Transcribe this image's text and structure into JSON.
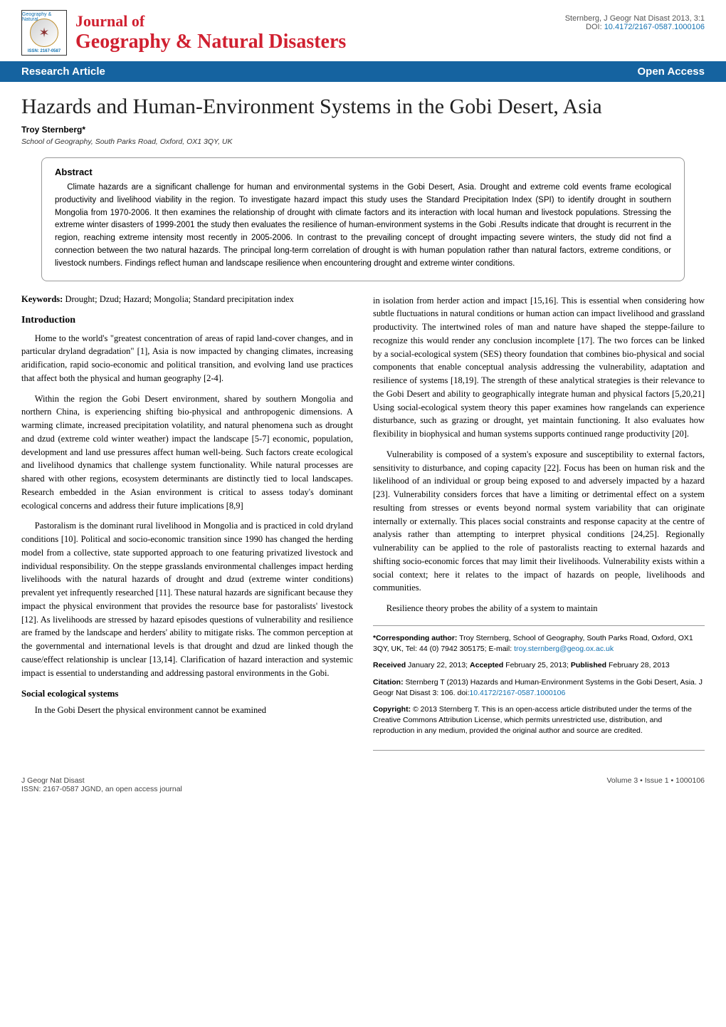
{
  "header": {
    "logo_arc": "Geography & Natural",
    "logo_issn": "ISSN: 2167-0587",
    "journal_of": "Journal of",
    "journal_name": "Geography & Natural Disasters",
    "citation_short": "Sternberg, J Geogr Nat Disast 2013, 3:1",
    "doi_label": "DOI: ",
    "doi": "10.4172/2167-0587.1000106"
  },
  "bar": {
    "left": "Research Article",
    "right": "Open Access"
  },
  "article": {
    "title": "Hazards and Human-Environment Systems in the Gobi Desert, Asia",
    "author": "Troy Sternberg*",
    "affiliation": "School of Geography, South Parks Road, Oxford, OX1 3QY, UK"
  },
  "abstract": {
    "heading": "Abstract",
    "text": "Climate hazards are a significant challenge for human and environmental systems in the Gobi Desert, Asia. Drought and extreme cold events frame ecological productivity and livelihood viability in the region. To investigate hazard impact this study uses the Standard Precipitation Index (SPI) to identify drought in southern Mongolia from 1970-2006. It then examines the relationship of drought with climate factors and its interaction with local human and livestock populations. Stressing the extreme winter disasters of 1999-2001 the study then evaluates the resilience of human-environment systems in the Gobi .Results indicate that drought is recurrent in the region, reaching extreme intensity most recently in 2005-2006. In contrast to the prevailing concept of drought impacting severe winters, the study did not find a connection between the two natural hazards. The principal long-term correlation of drought is with human population rather than natural factors, extreme conditions, or livestock numbers. Findings reflect human and landscape resilience when encountering drought and extreme winter conditions."
  },
  "keywords": {
    "label": "Keywords:",
    "text": " Drought; Dzud; Hazard; Mongolia; Standard precipitation index"
  },
  "sections": {
    "intro_heading": "Introduction",
    "ses_heading": "Social ecological systems"
  },
  "left_col": {
    "p1": "Home to the world's \"greatest concentration of areas of rapid land-cover changes, and in particular dryland degradation\" [1], Asia is now impacted by changing climates, increasing aridification, rapid socio-economic and political transition, and evolving land use practices that affect both the physical and human geography [2-4].",
    "p2": "Within the region the Gobi Desert environment, shared by southern Mongolia and northern China, is experiencing shifting bio-physical and anthropogenic dimensions. A warming climate, increased precipitation volatility, and natural phenomena such as drought and dzud (extreme cold winter weather) impact the landscape [5-7] economic, population, development and land use pressures affect human well-being. Such factors create ecological and livelihood dynamics that challenge system functionality. While natural processes are shared with other regions, ecosystem determinants are distinctly tied to local landscapes. Research embedded in the Asian environment is critical to assess today's dominant ecological concerns and address their future implications [8,9]",
    "p3": "Pastoralism is the dominant rural livelihood in Mongolia and is practiced in cold dryland conditions [10]. Political and socio-economic transition since 1990 has changed the herding model from a collective, state supported approach to one featuring privatized livestock and individual responsibility. On the steppe grasslands environmental challenges impact herding livelihoods with the natural hazards of drought and dzud (extreme winter conditions) prevalent yet infrequently researched [11]. These natural hazards are significant because they impact the physical environment that provides the resource base for pastoralists' livestock [12]. As livelihoods are stressed by hazard episodes questions of vulnerability and resilience are framed by the landscape and herders' ability to mitigate risks. The common perception at the governmental and international levels is that drought and dzud are linked though the cause/effect relationship is unclear [13,14]. Clarification of hazard interaction and systemic impact is essential to understanding and addressing pastoral environments in the Gobi.",
    "p4": "In the Gobi Desert the physical environment cannot be examined"
  },
  "right_col": {
    "p1": "in isolation from herder action and impact [15,16]. This is essential when considering how subtle fluctuations in natural conditions or human action can impact livelihood and grassland productivity. The intertwined roles of man and nature have shaped the steppe-failure to recognize this would render any conclusion incomplete [17]. The two forces can be linked by a social-ecological system (SES) theory foundation that combines bio-physical and social components that enable conceptual analysis addressing the vulnerability, adaptation and resilience of systems [18,19]. The strength of these analytical strategies is their relevance to the Gobi Desert and ability to geographically integrate human and physical factors [5,20,21] Using social-ecological system theory this paper examines how rangelands can experience disturbance, such as grazing or drought, yet maintain functioning. It also evaluates how flexibility in biophysical and human systems supports continued range productivity [20].",
    "p2": "Vulnerability is composed of a system's exposure and susceptibility to external factors, sensitivity to disturbance, and coping capacity [22]. Focus has been on human risk and the likelihood of an individual or group being exposed to and adversely impacted by a hazard [23]. Vulnerability considers forces that have a limiting or detrimental effect on a system resulting from stresses or events beyond normal system variability that can originate internally or externally. This places social constraints and response capacity at the centre of analysis rather than attempting to interpret physical conditions [24,25]. Regionally vulnerability can be applied to the role of pastoralists reacting to external hazards and shifting socio-economic forces that may limit their livelihoods. Vulnerability exists within a social context; here it relates to the impact of hazards on people, livelihoods and communities.",
    "p3": "Resilience theory probes the ability of a system to maintain"
  },
  "corr": {
    "corresponding_label": "*Corresponding author:",
    "corresponding_text": " Troy Sternberg, School of Geography, South Parks Road, Oxford, OX1 3QY, UK, Tel: 44 (0) 7942 305175; E-mail: ",
    "corresponding_email": "troy.sternberg@geog.ox.ac.uk",
    "received_label": "Received",
    "received_date": " January 22, 2013; ",
    "accepted_label": "Accepted",
    "accepted_date": " February 25, 2013; ",
    "published_label": "Published",
    "published_date": " February 28, 2013",
    "citation_label": "Citation:",
    "citation_text": " Sternberg T (2013) Hazards and Human-Environment Systems in the Gobi Desert, Asia. J Geogr Nat Disast 3: 106. doi:",
    "citation_doi": "10.4172/2167-0587.1000106",
    "copyright_label": "Copyright:",
    "copyright_text": " © 2013 Sternberg T. This is an open-access article distributed under the terms of the Creative Commons Attribution License, which permits unrestricted use, distribution, and reproduction in any medium, provided the original author and source are credited."
  },
  "footer": {
    "left_line1": "J Geogr Nat Disast",
    "left_line2": "ISSN: 2167-0587 JGND, an open access journal",
    "right": "Volume 3 • Issue 1 • 1000106"
  },
  "colors": {
    "brand_red": "#d02030",
    "bar_blue": "#1563a0",
    "link_blue": "#1070b0"
  }
}
